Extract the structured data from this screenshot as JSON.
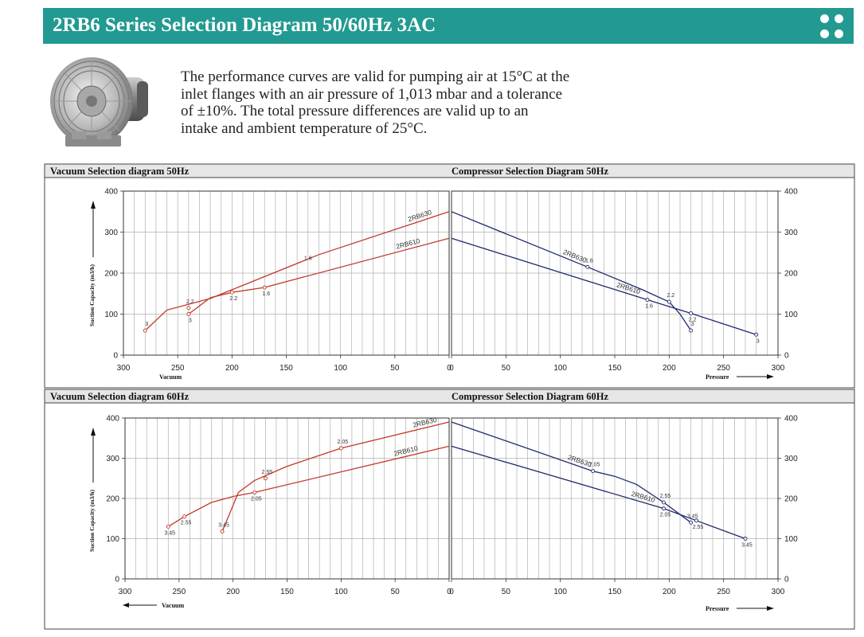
{
  "header": {
    "title": "2RB6 Series Selection Diagram 50/60Hz 3AC",
    "accent_color": "#239a91",
    "menu_icon": "four-dots-icon"
  },
  "product_image": {
    "icon": "side-channel-blower-icon"
  },
  "intro": {
    "lines": [
      "The performance curves are valid for pumping air at 15°C at the",
      "inlet flanges with an air pressure of 1,013 mbar and a tolerance",
      "of ±10%. The total pressure differences are valid up to an",
      "intake and ambient temperature of 25°C."
    ]
  },
  "colors": {
    "vacuum_curve": "#c0392b",
    "compressor_curve": "#1f2a6b",
    "grid": "#b0b0b0",
    "title_bar": "#e6e6e6"
  },
  "chart_data": [
    {
      "type": "line",
      "title": "Vacuum Selection diagram 50Hz",
      "xlabel": "Vacuum",
      "ylabel": "Suction Capacity (m3/h)",
      "xlim": [
        300,
        0
      ],
      "ylim": [
        0,
        400
      ],
      "x_ticks": [
        "300",
        "250",
        "200",
        "150",
        "100",
        "50",
        "0"
      ],
      "y_ticks": [
        "0",
        "100",
        "200",
        "300",
        "400"
      ],
      "grid": true,
      "series": [
        {
          "name": "2RB630",
          "points": [
            [
              0,
              350
            ],
            [
              120,
              245
            ],
            [
              220,
              138
            ],
            [
              260,
              110
            ],
            [
              280,
              60
            ]
          ],
          "markers": [
            {
              "x": 280,
              "y": 60,
              "label": "3"
            },
            {
              "x": 240,
              "y": 115,
              "label": "2.2"
            }
          ]
        },
        {
          "name": "2RB610",
          "points": [
            [
              0,
              285
            ],
            [
              170,
              165
            ],
            [
              200,
              153
            ],
            [
              220,
              140
            ],
            [
              240,
              100
            ]
          ],
          "markers": [
            {
              "x": 240,
              "y": 100,
              "label": "3"
            },
            {
              "x": 200,
              "y": 153,
              "label": "2.2"
            },
            {
              "x": 170,
              "y": 165,
              "label": "1.6"
            }
          ]
        }
      ],
      "annotations": [
        {
          "text": "1.6",
          "x": 130,
          "y": 232
        }
      ]
    },
    {
      "type": "line",
      "title": "Compressor Selection Diagram 50Hz",
      "xlabel": "Pressure",
      "ylabel": "",
      "xlim": [
        0,
        300
      ],
      "ylim": [
        0,
        400
      ],
      "x_ticks": [
        "0",
        "50",
        "100",
        "150",
        "200",
        "250",
        "300"
      ],
      "y_ticks": [
        "0",
        "100",
        "200",
        "300",
        "400"
      ],
      "grid": true,
      "series": [
        {
          "name": "2RB630",
          "points": [
            [
              0,
              350
            ],
            [
              125,
              215
            ],
            [
              175,
              160
            ],
            [
              200,
              130
            ],
            [
              210,
              100
            ],
            [
              220,
              60
            ]
          ],
          "markers": [
            {
              "x": 125,
              "y": 215,
              "label": "1.6"
            },
            {
              "x": 200,
              "y": 130,
              "label": "2.2"
            },
            {
              "x": 220,
              "y": 60,
              "label": "3"
            }
          ]
        },
        {
          "name": "2RB610",
          "points": [
            [
              0,
              285
            ],
            [
              180,
              135
            ],
            [
              220,
              102
            ],
            [
              280,
              50
            ]
          ],
          "markers": [
            {
              "x": 180,
              "y": 135,
              "label": "1.6"
            },
            {
              "x": 220,
              "y": 102,
              "label": "2.2"
            },
            {
              "x": 280,
              "y": 50,
              "label": "3"
            }
          ]
        }
      ]
    },
    {
      "type": "line",
      "title": "Vacuum Selection diagram 60Hz",
      "xlabel": "Vacuum",
      "ylabel": "Suction Capacity (m3/h)",
      "xlim": [
        300,
        0
      ],
      "ylim": [
        0,
        400
      ],
      "x_ticks": [
        "300",
        "250",
        "200",
        "150",
        "100",
        "50",
        "0"
      ],
      "y_ticks": [
        "0",
        "100",
        "200",
        "300",
        "400"
      ],
      "grid": true,
      "series": [
        {
          "name": "2RB630",
          "points": [
            [
              0,
              390
            ],
            [
              100,
              325
            ],
            [
              150,
              280
            ],
            [
              180,
              245
            ],
            [
              195,
              215
            ],
            [
              210,
              118
            ]
          ],
          "markers": [
            {
              "x": 100,
              "y": 325,
              "label": "2.05"
            },
            {
              "x": 170,
              "y": 250,
              "label": "2.55"
            },
            {
              "x": 210,
              "y": 118,
              "label": "3.45"
            }
          ]
        },
        {
          "name": "2RB610",
          "points": [
            [
              0,
              330
            ],
            [
              180,
              215
            ],
            [
              200,
              205
            ],
            [
              220,
              190
            ],
            [
              245,
              155
            ],
            [
              260,
              130
            ]
          ],
          "markers": [
            {
              "x": 180,
              "y": 215,
              "label": "2.05"
            },
            {
              "x": 245,
              "y": 155,
              "label": "2.55"
            },
            {
              "x": 260,
              "y": 130,
              "label": "3.45"
            }
          ]
        }
      ]
    },
    {
      "type": "line",
      "title": "Compressor Selection Diagram 60Hz",
      "xlabel": "Pressure",
      "ylabel": "",
      "xlim": [
        0,
        300
      ],
      "ylim": [
        0,
        400
      ],
      "x_ticks": [
        "0",
        "50",
        "100",
        "150",
        "200",
        "250",
        "300"
      ],
      "y_ticks": [
        "0",
        "100",
        "200",
        "300",
        "400"
      ],
      "grid": true,
      "series": [
        {
          "name": "2RB630",
          "points": [
            [
              0,
              390
            ],
            [
              130,
              268
            ],
            [
              150,
              255
            ],
            [
              170,
              235
            ],
            [
              195,
              190
            ],
            [
              220,
              140
            ]
          ],
          "markers": [
            {
              "x": 130,
              "y": 268,
              "label": "2.05"
            },
            {
              "x": 195,
              "y": 190,
              "label": "2.55"
            },
            {
              "x": 220,
              "y": 140,
              "label": "3.45"
            }
          ]
        },
        {
          "name": "2RB610",
          "points": [
            [
              0,
              330
            ],
            [
              195,
              175
            ],
            [
              225,
              145
            ],
            [
              270,
              100
            ]
          ],
          "markers": [
            {
              "x": 195,
              "y": 175,
              "label": "2.05"
            },
            {
              "x": 225,
              "y": 145,
              "label": "2.55"
            },
            {
              "x": 270,
              "y": 100,
              "label": "3.45"
            }
          ]
        }
      ]
    }
  ]
}
